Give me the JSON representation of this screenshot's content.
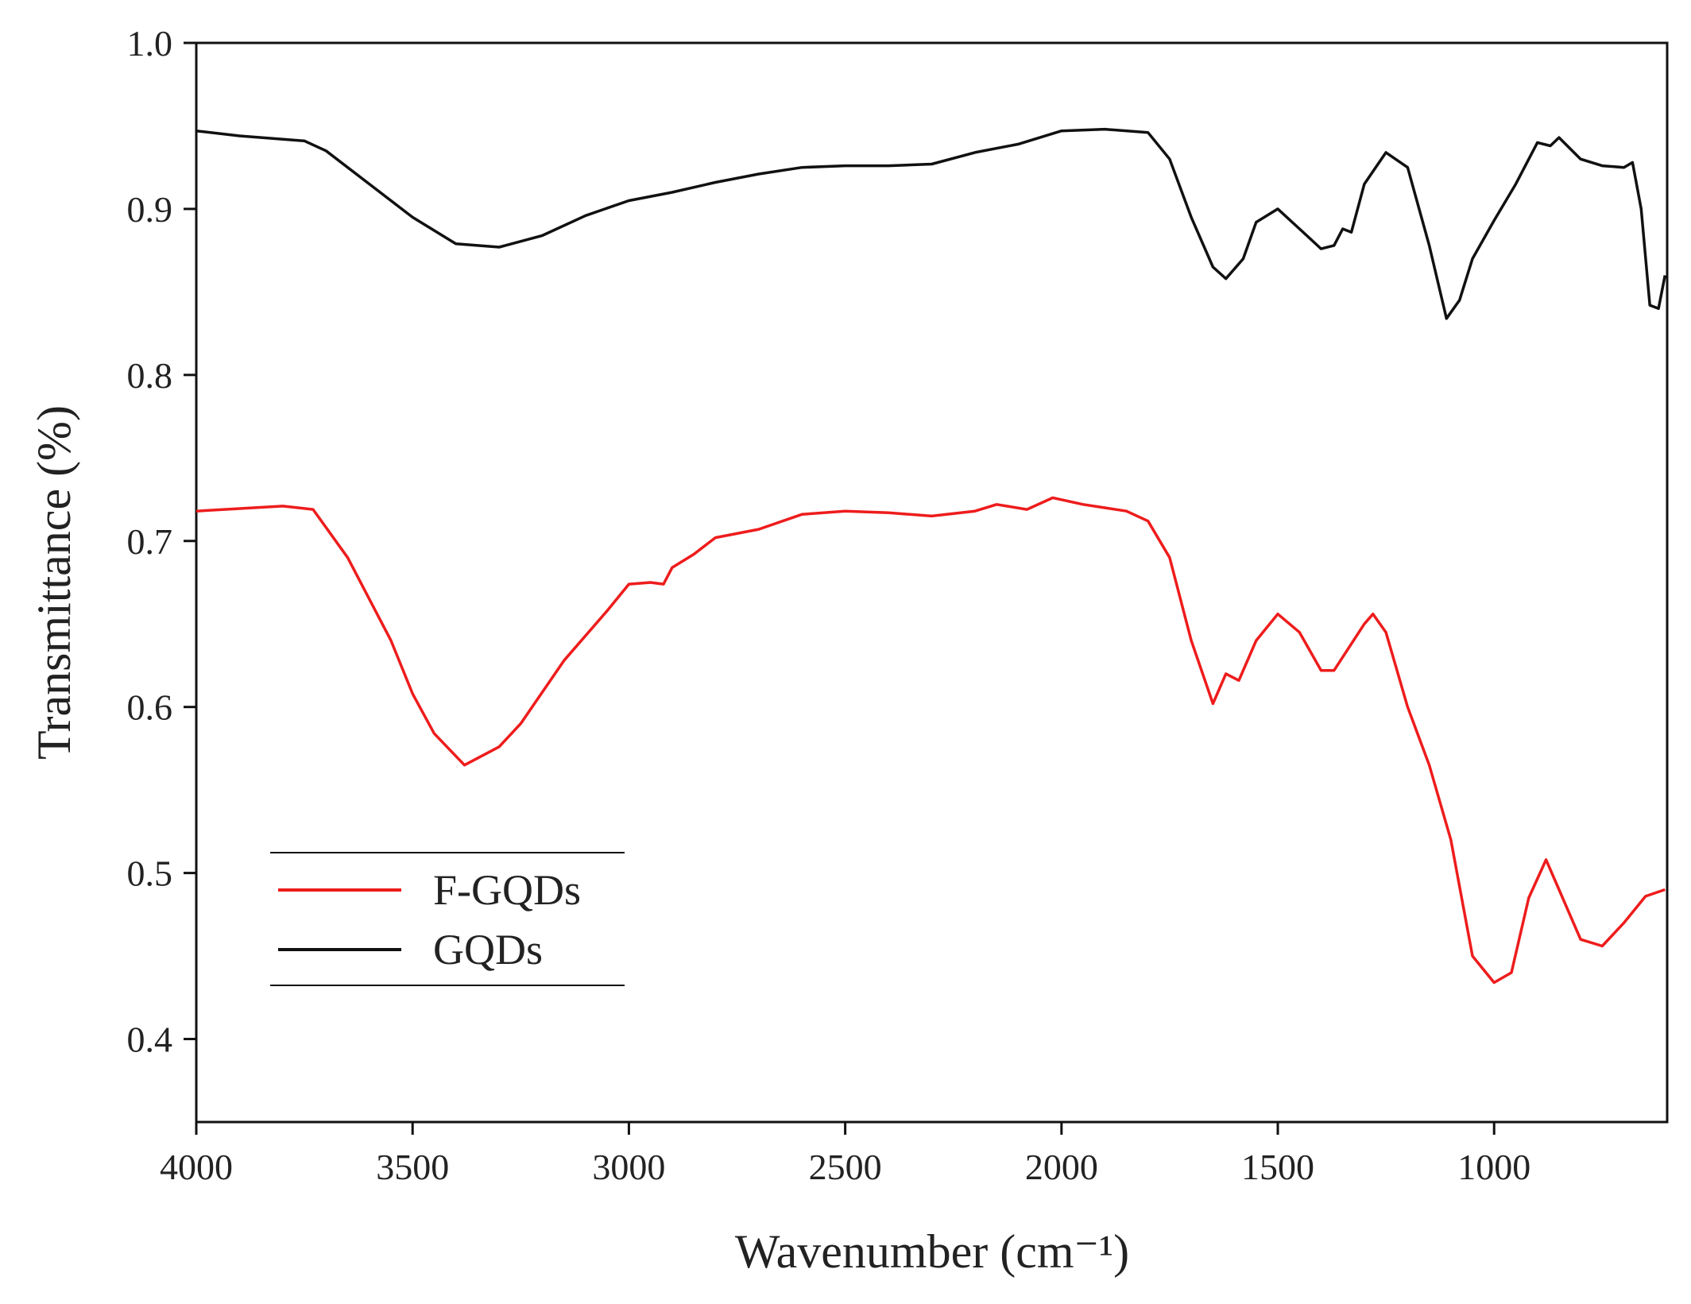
{
  "chart_data": {
    "type": "line",
    "xlabel": "Wavenumber (cm⁻¹)",
    "ylabel": "Transmittance (%)",
    "xlim": [
      4000,
      600
    ],
    "xticks": [
      4000,
      3500,
      3000,
      2500,
      2000,
      1500,
      1000
    ],
    "ylim": [
      0.35,
      1.0
    ],
    "yticks": [
      {
        "value": 1,
        "label": "1.0"
      },
      0.9,
      0.8,
      0.7,
      0.6,
      0.5,
      0.4
    ],
    "legend": "lower left",
    "grid": false,
    "series": [
      {
        "name": "F-GQDs",
        "color": "#ee1c1c",
        "x": [
          4000,
          3800,
          3730,
          3650,
          3550,
          3500,
          3450,
          3380,
          3300,
          3250,
          3150,
          3050,
          3000,
          2950,
          2920,
          2900,
          2850,
          2800,
          2700,
          2600,
          2500,
          2400,
          2300,
          2200,
          2150,
          2080,
          2020,
          1950,
          1850,
          1800,
          1750,
          1700,
          1650,
          1620,
          1590,
          1550,
          1500,
          1450,
          1400,
          1370,
          1300,
          1280,
          1250,
          1200,
          1150,
          1100,
          1050,
          1000,
          960,
          920,
          880,
          850,
          800,
          750,
          700,
          650,
          605
        ],
        "values": [
          0.718,
          0.721,
          0.719,
          0.69,
          0.64,
          0.608,
          0.584,
          0.565,
          0.576,
          0.59,
          0.628,
          0.658,
          0.674,
          0.675,
          0.674,
          0.684,
          0.692,
          0.702,
          0.707,
          0.716,
          0.718,
          0.717,
          0.715,
          0.718,
          0.722,
          0.719,
          0.726,
          0.722,
          0.718,
          0.712,
          0.69,
          0.64,
          0.602,
          0.62,
          0.616,
          0.64,
          0.656,
          0.645,
          0.622,
          0.622,
          0.65,
          0.656,
          0.645,
          0.6,
          0.565,
          0.52,
          0.45,
          0.434,
          0.44,
          0.485,
          0.508,
          0.49,
          0.46,
          0.456,
          0.47,
          0.486,
          0.49
        ]
      },
      {
        "name": "GQDs",
        "color": "#111111",
        "x": [
          4000,
          3900,
          3750,
          3700,
          3600,
          3500,
          3400,
          3300,
          3200,
          3100,
          3000,
          2900,
          2800,
          2700,
          2600,
          2500,
          2400,
          2300,
          2200,
          2100,
          2000,
          1900,
          1800,
          1750,
          1700,
          1650,
          1620,
          1580,
          1550,
          1500,
          1450,
          1400,
          1370,
          1350,
          1330,
          1300,
          1250,
          1200,
          1150,
          1110,
          1080,
          1050,
          1000,
          950,
          900,
          870,
          850,
          800,
          750,
          700,
          680,
          660,
          640,
          620,
          605
        ],
        "values": [
          0.947,
          0.944,
          0.941,
          0.935,
          0.915,
          0.895,
          0.879,
          0.877,
          0.884,
          0.896,
          0.905,
          0.91,
          0.916,
          0.921,
          0.925,
          0.926,
          0.926,
          0.927,
          0.934,
          0.939,
          0.947,
          0.948,
          0.946,
          0.93,
          0.895,
          0.865,
          0.858,
          0.87,
          0.892,
          0.9,
          0.888,
          0.876,
          0.878,
          0.888,
          0.886,
          0.915,
          0.934,
          0.925,
          0.878,
          0.834,
          0.845,
          0.87,
          0.893,
          0.915,
          0.94,
          0.938,
          0.943,
          0.93,
          0.926,
          0.925,
          0.928,
          0.9,
          0.842,
          0.84,
          0.86
        ]
      }
    ]
  }
}
